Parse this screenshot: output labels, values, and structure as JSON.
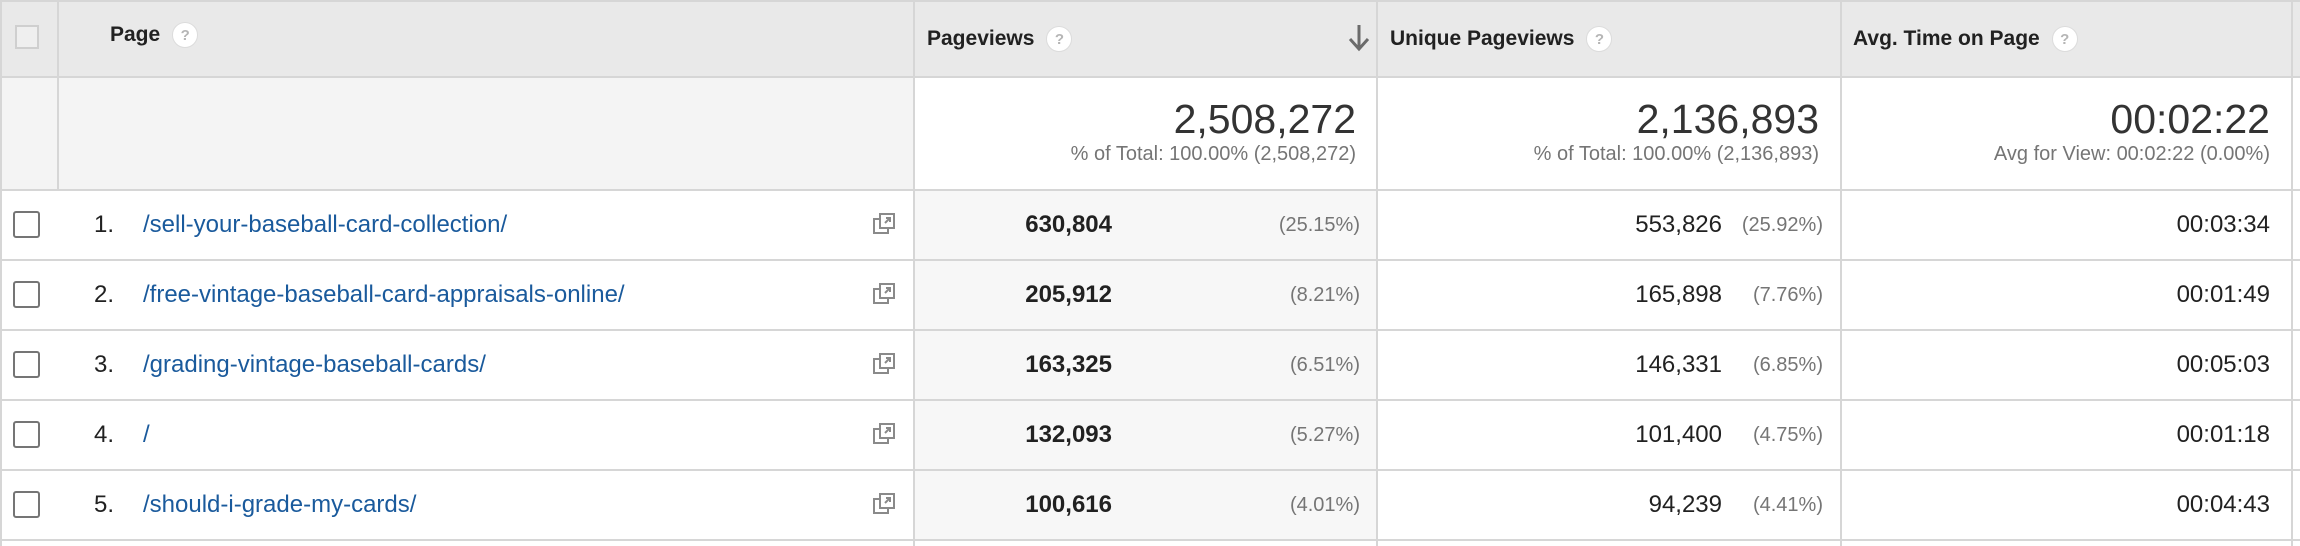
{
  "header": {
    "page_label": "Page",
    "pageviews_label": "Pageviews",
    "unique_pageviews_label": "Unique Pageviews",
    "avg_time_label": "Avg. Time on Page",
    "help_glyph": "?"
  },
  "summary": {
    "pageviews_total": "2,508,272",
    "pageviews_note": "% of Total: 100.00% (2,508,272)",
    "unique_total": "2,136,893",
    "unique_note": "% of Total: 100.00% (2,136,893)",
    "avg_time": "00:02:22",
    "avg_time_note": "Avg for View: 00:02:22 (0.00%)"
  },
  "rows": [
    {
      "num": "1.",
      "page": "/sell-your-baseball-card-collection/",
      "pageviews": "630,804",
      "pageviews_pct": "(25.15%)",
      "unique": "553,826",
      "unique_pct": "(25.92%)",
      "avg_time": "00:03:34"
    },
    {
      "num": "2.",
      "page": "/free-vintage-baseball-card-appraisals-online/",
      "pageviews": "205,912",
      "pageviews_pct": "(8.21%)",
      "unique": "165,898",
      "unique_pct": "(7.76%)",
      "avg_time": "00:01:49"
    },
    {
      "num": "3.",
      "page": "/grading-vintage-baseball-cards/",
      "pageviews": "163,325",
      "pageviews_pct": "(6.51%)",
      "unique": "146,331",
      "unique_pct": "(6.85%)",
      "avg_time": "00:05:03"
    },
    {
      "num": "4.",
      "page": "/",
      "pageviews": "132,093",
      "pageviews_pct": "(5.27%)",
      "unique": "101,400",
      "unique_pct": "(4.75%)",
      "avg_time": "00:01:18"
    },
    {
      "num": "5.",
      "page": "/should-i-grade-my-cards/",
      "pageviews": "100,616",
      "pageviews_pct": "(4.01%)",
      "unique": "94,239",
      "unique_pct": "(4.41%)",
      "avg_time": "00:04:43"
    }
  ]
}
